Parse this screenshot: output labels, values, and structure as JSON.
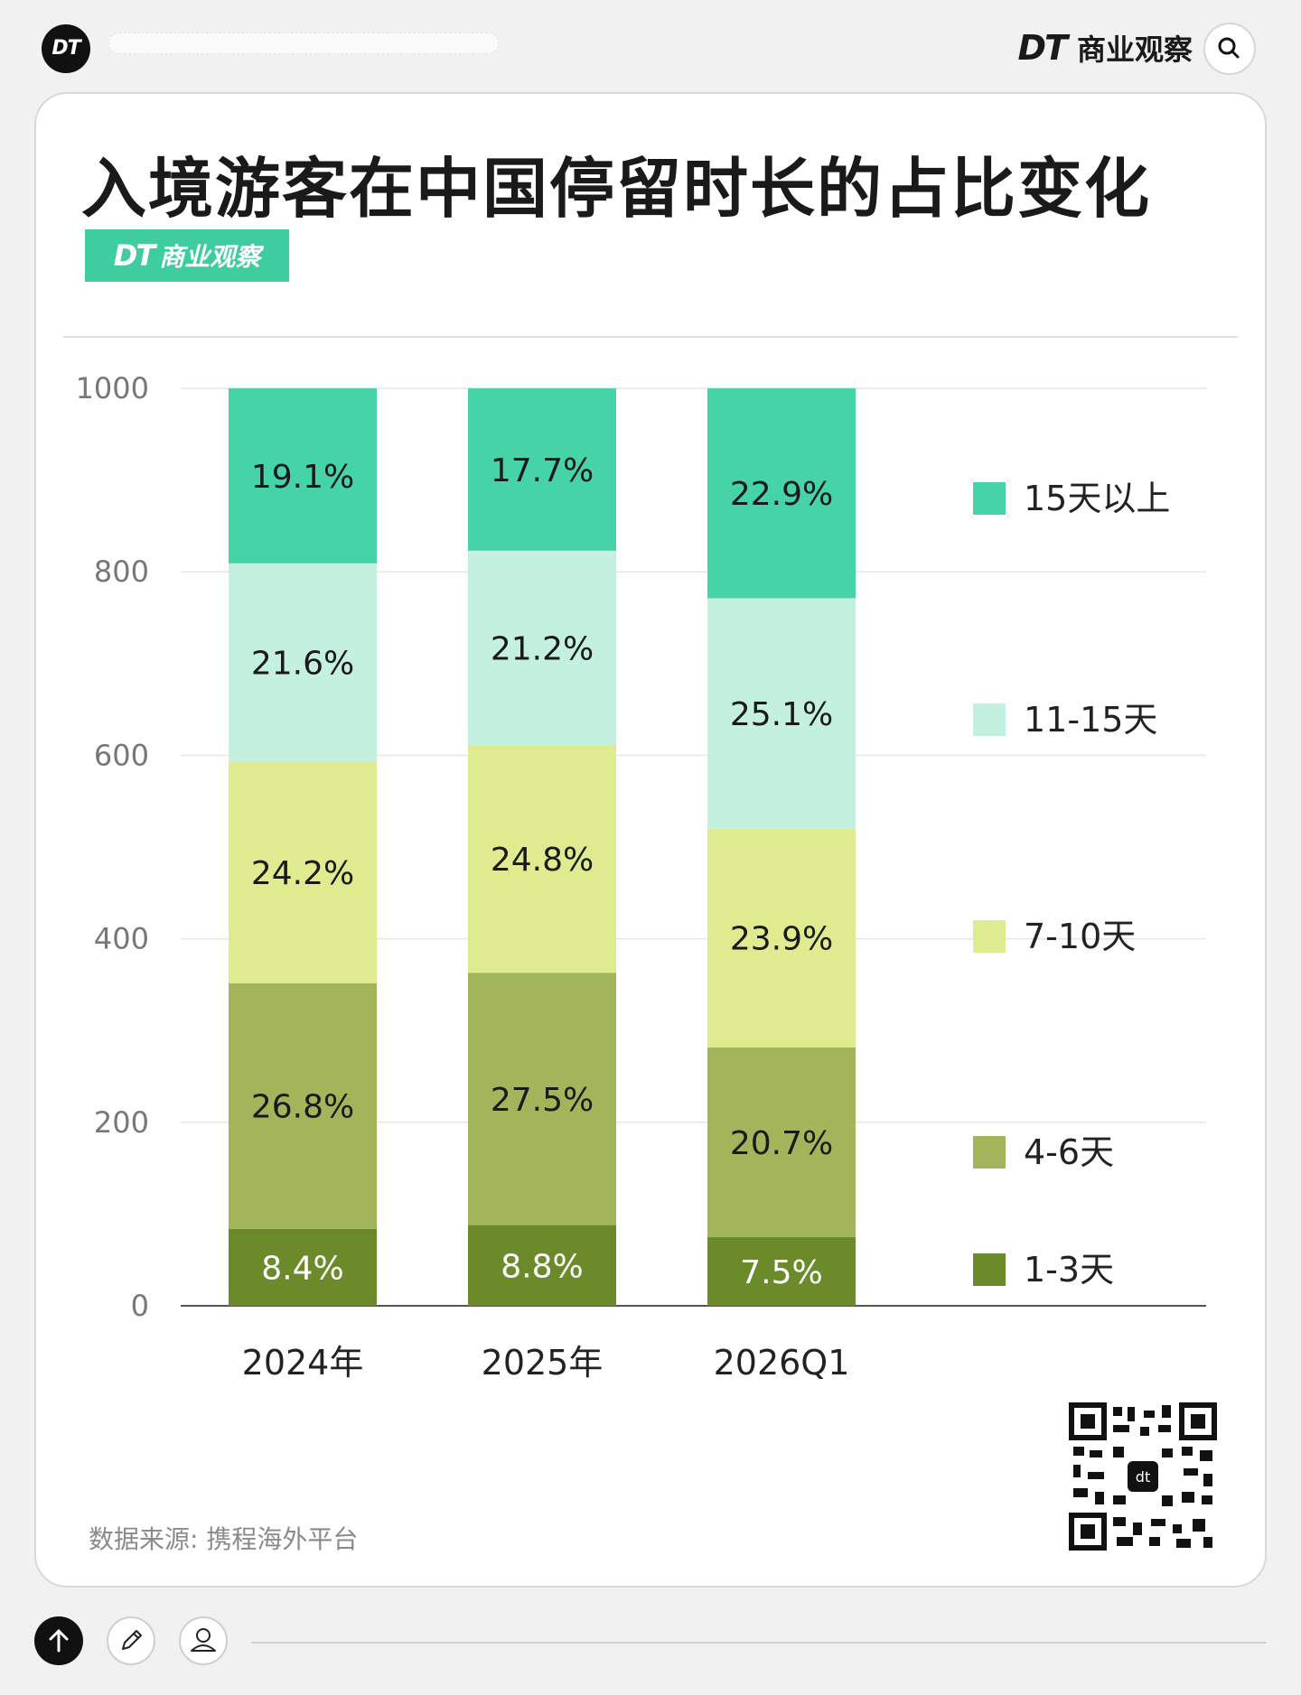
{
  "header": {
    "logo_text": "DT",
    "brand_mark": "DT",
    "brand_name": "商业观察",
    "search_icon": "search-icon"
  },
  "card": {
    "title": "入境游客在中国停留时长的占比变化",
    "badge_mark": "DT",
    "badge_name": "商业观察",
    "source": "数据来源: 携程海外平台"
  },
  "colors": {
    "s_1_3": "#6b8a2a",
    "s_4_6": "#a3b55a",
    "s_7_10": "#dfeb8f",
    "s_11_15": "#c4f0df",
    "s_15plus": "#46d3a7"
  },
  "chart_data": {
    "type": "bar",
    "stacked": true,
    "title": "入境游客在中国停留时长的占比变化",
    "categories": [
      "2024年",
      "2025年",
      "2026Q1"
    ],
    "ylim": [
      0,
      1000
    ],
    "yticks": [
      "0",
      "200",
      "400",
      "600",
      "800",
      "1000"
    ],
    "grid": true,
    "legend_position": "right",
    "series": [
      {
        "name": "1-3天",
        "values": [
          8.4,
          8.8,
          7.5
        ],
        "labels": [
          "8.4%",
          "8.8%",
          "7.5%"
        ],
        "color": "#6b8a2a"
      },
      {
        "name": "4-6天",
        "values": [
          26.8,
          27.5,
          20.7
        ],
        "labels": [
          "26.8%",
          "27.5%",
          "20.7%"
        ],
        "color": "#a3b55a"
      },
      {
        "name": "7-10天",
        "values": [
          24.2,
          24.8,
          23.9
        ],
        "labels": [
          "24.2%",
          "24.8%",
          "23.9%"
        ],
        "color": "#dfeb8f"
      },
      {
        "name": "11-15天",
        "values": [
          21.6,
          21.2,
          25.1
        ],
        "labels": [
          "21.6%",
          "21.2%",
          "25.1%"
        ],
        "color": "#c4f0df"
      },
      {
        "name": "15天以上",
        "values": [
          19.1,
          17.7,
          22.9
        ],
        "labels": [
          "19.1%",
          "17.7%",
          "22.9%"
        ],
        "color": "#46d3a7"
      }
    ]
  },
  "footer": {
    "up_icon": "arrow-up-icon",
    "edit_icon": "pencil-icon",
    "user_icon": "user-icon"
  }
}
